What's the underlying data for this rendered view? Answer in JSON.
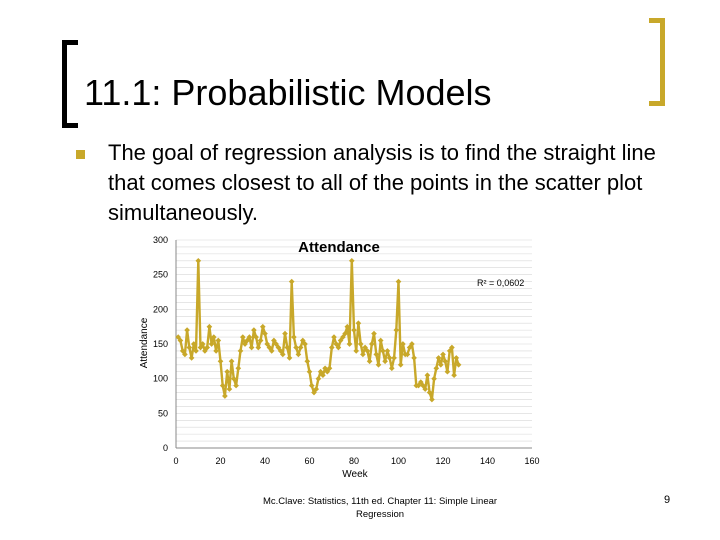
{
  "slide": {
    "title": "11.1: Probabilistic Models",
    "bullet_text": "The goal of regression analysis is to find the straight line that comes closest to all of the points in the scatter plot simultaneously.",
    "footer": "Mc.Clave: Statistics, 11th ed. Chapter 11: Simple Linear Regression",
    "page_number": "9",
    "accent_color": "#c8a82a"
  },
  "chart_data": {
    "type": "line",
    "title": "Attendance",
    "xlabel": "Week",
    "ylabel": "Attendance",
    "annotation": "R² = 0,0602",
    "xlim": [
      0,
      160
    ],
    "ylim": [
      0,
      300
    ],
    "x_ticks": [
      0,
      20,
      40,
      60,
      80,
      100,
      120,
      140,
      160
    ],
    "y_ticks": [
      0,
      50,
      100,
      150,
      200,
      250,
      300
    ],
    "grid": "horizontal",
    "series_color": "#c8a82a",
    "series": [
      {
        "values": [
          160,
          155,
          140,
          135,
          170,
          145,
          130,
          150,
          140,
          270,
          145,
          150,
          140,
          145,
          175,
          150,
          160,
          140,
          155,
          125,
          90,
          75,
          110,
          85,
          125,
          100,
          90,
          115,
          140,
          160,
          150,
          155,
          160,
          145,
          170,
          160,
          145,
          155,
          175,
          165,
          150,
          145,
          140,
          155,
          150,
          145,
          140,
          135,
          165,
          145,
          130,
          240,
          160,
          145,
          135,
          145,
          155,
          150,
          125,
          110,
          90,
          80,
          85,
          100,
          110,
          105,
          115,
          110,
          115,
          145,
          160,
          150,
          145,
          155,
          160,
          165,
          175,
          150,
          270,
          170,
          140,
          180,
          150,
          135,
          145,
          140,
          125,
          150,
          165,
          135,
          120,
          155,
          140,
          125,
          140,
          130,
          115,
          130,
          170,
          240,
          120,
          150,
          135,
          135,
          145,
          150,
          130,
          90,
          90,
          95,
          90,
          85,
          105,
          80,
          70,
          100,
          115,
          130,
          120,
          135,
          125,
          110,
          140,
          145,
          105,
          130,
          120
        ]
      }
    ]
  }
}
